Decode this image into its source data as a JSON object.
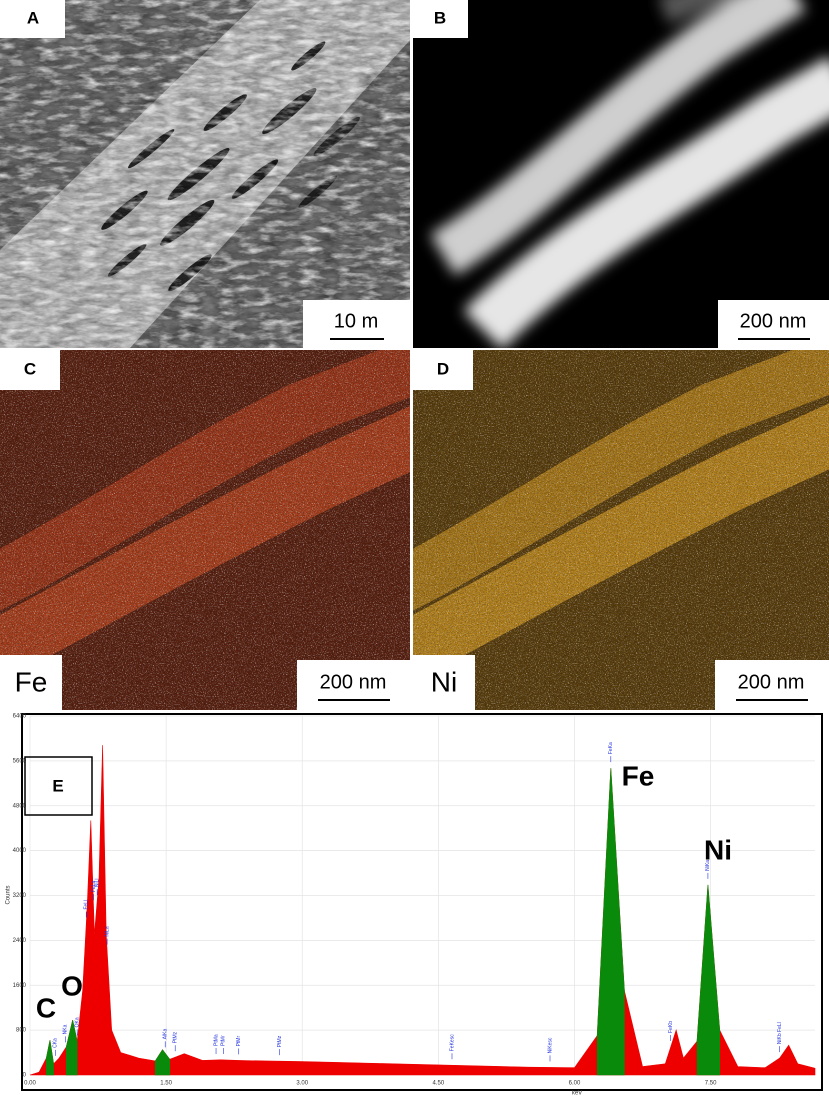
{
  "panels": [
    {
      "label": "A",
      "scale_bar": "10 m"
    },
    {
      "label": "B",
      "scale_bar": "200 nm"
    },
    {
      "label": "C",
      "element": "Fe",
      "scale_bar": "200 nm"
    },
    {
      "label": "D",
      "element": "Ni",
      "scale_bar": "200 nm"
    }
  ],
  "chart_data": {
    "type": "area",
    "label": "E",
    "x_label": "keV",
    "y_label": "Counts",
    "x": [
      0,
      0.1,
      0.18,
      0.22,
      0.26,
      0.32,
      0.4,
      0.47,
      0.52,
      0.58,
      0.63,
      0.67,
      0.71,
      0.76,
      0.8,
      0.84,
      0.9,
      1.0,
      1.2,
      1.38,
      1.46,
      1.54,
      1.7,
      1.9,
      2.1,
      2.3,
      2.6,
      3.0,
      3.5,
      4.0,
      4.5,
      5.0,
      5.5,
      6.0,
      6.25,
      6.4,
      6.55,
      6.75,
      7.0,
      7.06,
      7.12,
      7.2,
      7.35,
      7.47,
      7.6,
      7.8,
      8.1,
      8.26,
      8.36,
      8.46,
      8.65
    ],
    "series": [
      {
        "color": "#ee0000",
        "values": [
          0,
          50,
          300,
          620,
          200,
          300,
          500,
          980,
          600,
          1500,
          3000,
          4540,
          2500,
          3500,
          5880,
          2500,
          800,
          400,
          300,
          250,
          450,
          280,
          380,
          260,
          270,
          260,
          250,
          240,
          220,
          200,
          180,
          160,
          140,
          130,
          700,
          5470,
          1500,
          150,
          200,
          500,
          800,
          300,
          600,
          3390,
          800,
          150,
          130,
          300,
          530,
          200,
          120
        ]
      },
      {
        "color": "#0a8a0a",
        "values": [
          null,
          null,
          300,
          620,
          200,
          null,
          500,
          980,
          600,
          null,
          null,
          null,
          null,
          null,
          null,
          null,
          null,
          null,
          null,
          250,
          450,
          280,
          null,
          null,
          null,
          null,
          null,
          null,
          null,
          null,
          null,
          null,
          null,
          null,
          700,
          5470,
          1500,
          null,
          null,
          null,
          null,
          null,
          600,
          3390,
          800,
          null,
          null,
          null,
          null,
          null,
          null
        ]
      }
    ],
    "xlim": [
      0,
      8.65
    ],
    "ylim": [
      0,
      6400
    ],
    "xticks": [
      {
        "value": 0,
        "label": "0.00"
      },
      {
        "value": 1.5,
        "label": "1.50"
      },
      {
        "value": 3,
        "label": "3.00"
      },
      {
        "value": 4.5,
        "label": "4.50"
      },
      {
        "value": 6,
        "label": "6.00"
      },
      {
        "value": 7.5,
        "label": "7.50"
      }
    ],
    "yticks": [
      0,
      800,
      1600,
      2400,
      3200,
      4000,
      4800,
      5600,
      6400
    ],
    "grid": true,
    "peak_labels": [
      {
        "label": "CKa",
        "energy": 0.28
      },
      {
        "label": "NKa",
        "energy": 0.39
      },
      {
        "label": "OKa",
        "energy": 0.52
      },
      {
        "label": "FeLl",
        "energy": 0.62
      },
      {
        "label": "FeLa",
        "energy": 0.7
      },
      {
        "label": "NiLl",
        "energy": 0.74
      },
      {
        "label": "NiLa",
        "energy": 0.85
      },
      {
        "label": "AlKa",
        "energy": 1.49
      },
      {
        "label": "PtMz",
        "energy": 1.6
      },
      {
        "label": "PtMa",
        "energy": 2.05
      },
      {
        "label": "PtMr",
        "energy": 2.13
      },
      {
        "label": "PtMr",
        "energy": 2.3
      },
      {
        "label": "PtMz",
        "energy": 2.75
      },
      {
        "label": "FeKesc",
        "energy": 4.65
      },
      {
        "label": "NiKesc",
        "energy": 5.73
      },
      {
        "label": "FeKa",
        "energy": 6.4
      },
      {
        "label": "FeKb",
        "energy": 7.06
      },
      {
        "label": "NiKa",
        "energy": 7.47
      },
      {
        "label": "NiKb FeLl",
        "energy": 8.26
      }
    ],
    "element_labels": [
      "C",
      "O",
      "Fe",
      "Ni"
    ]
  }
}
